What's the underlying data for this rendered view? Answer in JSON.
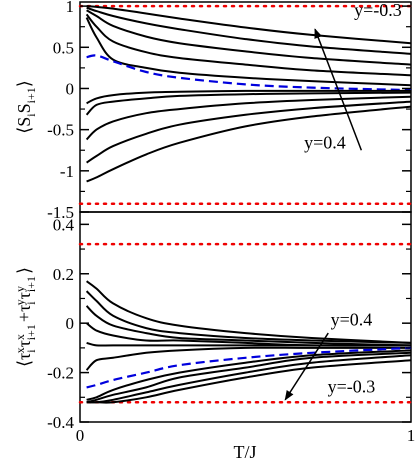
{
  "chart_data": [
    {
      "type": "line",
      "xlim": [
        0,
        1
      ],
      "ylim": [
        -1.5,
        1.05
      ],
      "yticks": [
        1,
        0.5,
        0,
        -0.5,
        -1,
        -1.5
      ],
      "ytick_labels": [
        "1",
        "0.5",
        "0",
        "-0.5",
        "-1",
        "-1.5"
      ],
      "ylabel": "<S_i S_i+1>",
      "x": [
        0.02,
        0.05,
        0.1,
        0.2,
        0.3,
        0.5,
        0.7,
        1.0
      ],
      "series": [
        {
          "values": [
            1.0,
            0.99,
            0.97,
            0.91,
            0.85,
            0.74,
            0.65,
            0.55
          ],
          "color": "#000000",
          "style": "solid"
        },
        {
          "values": [
            0.98,
            0.94,
            0.88,
            0.79,
            0.72,
            0.6,
            0.51,
            0.42
          ],
          "color": "#000000",
          "style": "solid"
        },
        {
          "values": [
            0.95,
            0.88,
            0.76,
            0.63,
            0.55,
            0.45,
            0.37,
            0.29
          ],
          "color": "#000000",
          "style": "solid"
        },
        {
          "values": [
            0.9,
            0.75,
            0.57,
            0.44,
            0.37,
            0.29,
            0.22,
            0.16
          ],
          "color": "#000000",
          "style": "solid"
        },
        {
          "values": [
            0.86,
            0.62,
            0.35,
            0.25,
            0.19,
            0.13,
            0.09,
            0.04
          ],
          "color": "#000000",
          "style": "solid"
        },
        {
          "values": [
            0.38,
            0.4,
            0.33,
            0.2,
            0.13,
            0.05,
            0.01,
            -0.02
          ],
          "color": "#0000dd",
          "style": "dashed"
        },
        {
          "values": [
            -0.18,
            -0.12,
            -0.08,
            -0.05,
            -0.04,
            -0.03,
            -0.03,
            -0.03
          ],
          "color": "#000000",
          "style": "solid"
        },
        {
          "values": [
            -0.32,
            -0.2,
            -0.16,
            -0.12,
            -0.09,
            -0.07,
            -0.06,
            -0.05
          ],
          "color": "#000000",
          "style": "solid"
        },
        {
          "values": [
            -0.62,
            -0.5,
            -0.4,
            -0.3,
            -0.25,
            -0.18,
            -0.14,
            -0.1
          ],
          "color": "#000000",
          "style": "solid"
        },
        {
          "values": [
            -0.9,
            -0.82,
            -0.7,
            -0.55,
            -0.44,
            -0.32,
            -0.24,
            -0.16
          ],
          "color": "#000000",
          "style": "solid"
        },
        {
          "values": [
            -1.13,
            -1.08,
            -0.98,
            -0.8,
            -0.66,
            -0.46,
            -0.34,
            -0.22
          ],
          "color": "#000000",
          "style": "solid"
        }
      ],
      "reference_lines": [
        {
          "y": 1.0,
          "color": "#ee0000",
          "style": "dotted"
        },
        {
          "y": -1.4,
          "color": "#ee0000",
          "style": "dotted"
        }
      ],
      "annotations": [
        {
          "text": "y=-0.3",
          "x": 0.9,
          "y": 0.88
        },
        {
          "text": "y=0.4",
          "x": 0.74,
          "y": -0.73
        }
      ],
      "arrow": {
        "from": [
          0.85,
          -0.75
        ],
        "to": [
          0.71,
          0.72
        ]
      }
    },
    {
      "type": "line",
      "xlim": [
        0,
        1
      ],
      "ylim": [
        -0.4,
        0.45
      ],
      "xticks": [
        0,
        1
      ],
      "xtick_labels": [
        "0",
        "1"
      ],
      "yticks": [
        0.4,
        0.2,
        0,
        -0.2,
        -0.4
      ],
      "ytick_labels": [
        "0.4",
        "0.2",
        "0",
        "-0.2",
        "-0.4"
      ],
      "xlabel": "T/J",
      "ylabel": "<τ_i^x τ_i+1^x + τ_i^y τ_i+1^y>",
      "x": [
        0.02,
        0.05,
        0.1,
        0.2,
        0.3,
        0.5,
        0.7,
        1.0
      ],
      "series": [
        {
          "values": [
            0.17,
            0.14,
            0.08,
            0.02,
            -0.01,
            -0.04,
            -0.06,
            -0.08
          ],
          "color": "#000000",
          "style": "solid"
        },
        {
          "values": [
            0.13,
            0.09,
            0.03,
            -0.02,
            -0.04,
            -0.06,
            -0.07,
            -0.08
          ],
          "color": "#000000",
          "style": "solid"
        },
        {
          "values": [
            0.07,
            0.03,
            -0.01,
            -0.04,
            -0.06,
            -0.07,
            -0.08,
            -0.09
          ],
          "color": "#000000",
          "style": "solid"
        },
        {
          "values": [
            0.0,
            -0.03,
            -0.05,
            -0.07,
            -0.07,
            -0.08,
            -0.09,
            -0.09
          ],
          "color": "#000000",
          "style": "solid"
        },
        {
          "values": [
            -0.08,
            -0.09,
            -0.09,
            -0.09,
            -0.09,
            -0.09,
            -0.09,
            -0.09
          ],
          "color": "#000000",
          "style": "solid"
        },
        {
          "values": [
            -0.19,
            -0.15,
            -0.14,
            -0.12,
            -0.11,
            -0.1,
            -0.1,
            -0.1
          ],
          "color": "#000000",
          "style": "solid"
        },
        {
          "values": [
            -0.26,
            -0.25,
            -0.23,
            -0.2,
            -0.17,
            -0.14,
            -0.12,
            -0.1
          ],
          "color": "#0000dd",
          "style": "dashed"
        },
        {
          "values": [
            -0.31,
            -0.3,
            -0.27,
            -0.23,
            -0.2,
            -0.16,
            -0.13,
            -0.11
          ],
          "color": "#000000",
          "style": "solid"
        },
        {
          "values": [
            -0.32,
            -0.31,
            -0.29,
            -0.26,
            -0.22,
            -0.18,
            -0.14,
            -0.12
          ],
          "color": "#000000",
          "style": "solid"
        },
        {
          "values": [
            -0.32,
            -0.32,
            -0.31,
            -0.28,
            -0.25,
            -0.2,
            -0.16,
            -0.13
          ],
          "color": "#000000",
          "style": "solid"
        },
        {
          "values": [
            -0.32,
            -0.32,
            -0.32,
            -0.3,
            -0.27,
            -0.22,
            -0.18,
            -0.15
          ],
          "color": "#000000",
          "style": "solid"
        }
      ],
      "reference_lines": [
        {
          "y": 0.32,
          "color": "#ee0000",
          "style": "dotted"
        },
        {
          "y": -0.32,
          "color": "#ee0000",
          "style": "dotted"
        }
      ],
      "annotations": [
        {
          "text": "y=0.4",
          "x": 0.82,
          "y": -0.01
        },
        {
          "text": "y=-0.3",
          "x": 0.82,
          "y": -0.28
        }
      ],
      "arrow": {
        "from": [
          0.75,
          -0.04
        ],
        "to": [
          0.62,
          -0.31
        ]
      }
    }
  ]
}
